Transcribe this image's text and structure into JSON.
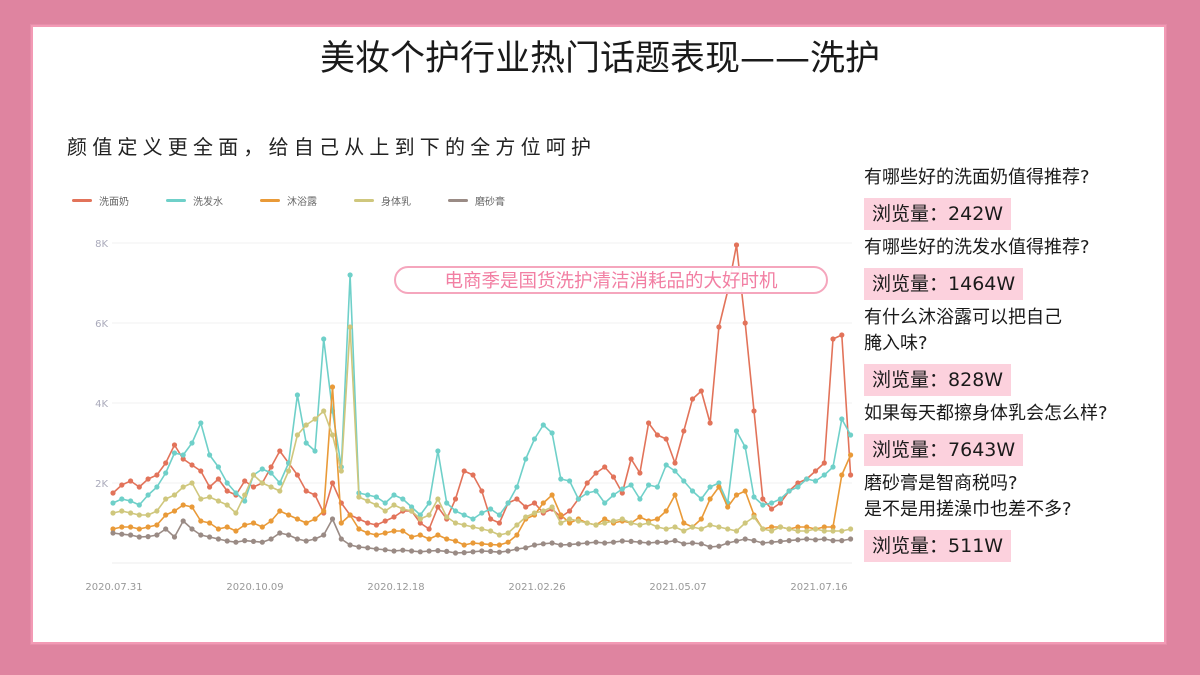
{
  "page": {
    "title": "美妆个护行业热门话题表现——洗护",
    "subtitle": "颜值定义更全面，给自己从上到下的全方位呵护",
    "annotation": "电商季是国货洗护清洁消耗品的大好时机"
  },
  "colors": {
    "background": "#df84a0",
    "card": "#ffffff",
    "highlight": "#fcd1dd",
    "annotation_text": "#f27fa3",
    "annotation_border": "#f5a6bd"
  },
  "topics": [
    {
      "question": "有哪些好的洗面奶值得推荐?",
      "views_label": "浏览量：",
      "views": "242W"
    },
    {
      "question": "有哪些好的洗发水值得推荐?",
      "views_label": "浏览量：",
      "views": "1464W"
    },
    {
      "question": "有什么沐浴露可以把自己\n腌入味?",
      "question_lines": [
        "有什么沐浴露可以把自己",
        "腌入味?"
      ],
      "views_label": "浏览量：",
      "views": "828W"
    },
    {
      "question": "如果每天都擦身体乳会怎么样?",
      "views_label": "浏览量：",
      "views": "7643W"
    },
    {
      "question": "磨砂膏是智商税吗?\n是不是用搓澡巾也差不多?",
      "question_lines": [
        "磨砂膏是智商税吗?",
        "是不是用搓澡巾也差不多?"
      ],
      "views_label": "浏览量：",
      "views": "511W"
    }
  ],
  "chart_data": {
    "type": "line",
    "title": "",
    "xlabel": "",
    "ylabel": "",
    "ylim": [
      0,
      8000
    ],
    "yticks": [
      "2K",
      "4K",
      "6K",
      "8K"
    ],
    "ytick_values": [
      2000,
      4000,
      6000,
      8000
    ],
    "grid": true,
    "legend_position": "top-left",
    "x_tick_labels": [
      "2020.07.31",
      "2020.10.09",
      "2020.12.18",
      "2021.02.26",
      "2021.05.07",
      "2021.07.16"
    ],
    "x_step_days": 5,
    "x_start": "2020.07.31",
    "series": [
      {
        "name": "洗面奶",
        "color": "#e2735a",
        "values": [
          1750,
          1950,
          2050,
          1900,
          2100,
          2200,
          2500,
          2950,
          2600,
          2450,
          2300,
          1900,
          2100,
          1800,
          1700,
          2050,
          1900,
          2000,
          2400,
          2800,
          2500,
          2200,
          1800,
          1700,
          1250,
          2000,
          1500,
          1200,
          1100,
          1000,
          950,
          1050,
          1150,
          1300,
          1300,
          1000,
          850,
          1400,
          1100,
          1600,
          2300,
          2200,
          1800,
          1100,
          1000,
          1500,
          1600,
          1400,
          1500,
          1250,
          1350,
          1150,
          1300,
          1600,
          2000,
          2250,
          2400,
          2150,
          1750,
          2600,
          2250,
          3500,
          3200,
          3100,
          2500,
          3300,
          4100,
          4300,
          3500,
          5900,
          6800,
          7950,
          6000,
          3800,
          1600,
          1350,
          1500,
          1800,
          2000,
          2100,
          2300,
          2500,
          5600,
          5700,
          2200
        ]
      },
      {
        "name": "洗发水",
        "color": "#6fd0c9",
        "values": [
          1500,
          1600,
          1550,
          1450,
          1700,
          1900,
          2250,
          2750,
          2700,
          3000,
          3500,
          2700,
          2400,
          2000,
          1750,
          1550,
          2200,
          2350,
          2250,
          2000,
          2500,
          4200,
          3000,
          2800,
          5600,
          3800,
          2400,
          7200,
          1750,
          1700,
          1650,
          1500,
          1700,
          1600,
          1400,
          1200,
          1500,
          2800,
          1500,
          1300,
          1200,
          1100,
          1250,
          1350,
          1200,
          1500,
          1900,
          2600,
          3100,
          3450,
          3250,
          2100,
          2050,
          1600,
          1750,
          1800,
          1500,
          1700,
          1850,
          1950,
          1600,
          1950,
          1900,
          2450,
          2300,
          2050,
          1800,
          1600,
          1900,
          2000,
          1500,
          3300,
          2900,
          1650,
          1450,
          1500,
          1600,
          1800,
          1900,
          2100,
          2050,
          2200,
          2400,
          3600,
          3200
        ]
      },
      {
        "name": "沐浴露",
        "color": "#e99a38",
        "values": [
          850,
          900,
          900,
          850,
          900,
          950,
          1200,
          1300,
          1450,
          1400,
          1050,
          1000,
          850,
          900,
          800,
          950,
          1000,
          900,
          1050,
          1300,
          1200,
          1100,
          1000,
          1100,
          1300,
          4400,
          1000,
          1200,
          850,
          750,
          700,
          750,
          800,
          800,
          650,
          700,
          600,
          700,
          600,
          550,
          450,
          500,
          480,
          460,
          450,
          520,
          700,
          1100,
          1200,
          1500,
          1700,
          1200,
          1000,
          1100,
          1000,
          950,
          1100,
          1000,
          1050,
          1000,
          1150,
          1050,
          1100,
          1300,
          1700,
          1000,
          900,
          1100,
          1600,
          1900,
          1400,
          1700,
          1800,
          1200,
          850,
          900,
          900,
          850,
          900,
          900,
          850,
          900,
          900,
          2200,
          2700
        ]
      },
      {
        "name": "身体乳",
        "color": "#cfc77d",
        "values": [
          1250,
          1300,
          1250,
          1200,
          1200,
          1300,
          1600,
          1700,
          1900,
          2000,
          1600,
          1650,
          1550,
          1450,
          1250,
          1700,
          2200,
          2000,
          1900,
          1800,
          2300,
          3200,
          3450,
          3600,
          3800,
          3200,
          2300,
          5900,
          1650,
          1550,
          1450,
          1300,
          1450,
          1350,
          1300,
          1100,
          1200,
          1600,
          1150,
          1000,
          950,
          900,
          850,
          800,
          700,
          750,
          950,
          1150,
          1250,
          1300,
          1400,
          1000,
          1100,
          1050,
          1000,
          950,
          1000,
          1050,
          1100,
          1000,
          950,
          1000,
          900,
          850,
          900,
          800,
          900,
          850,
          950,
          900,
          850,
          800,
          1000,
          1150,
          850,
          800,
          900,
          850,
          800,
          800,
          850,
          800,
          800,
          800,
          850
        ]
      },
      {
        "name": "磨砂膏",
        "color": "#9a8b85",
        "values": [
          750,
          720,
          700,
          650,
          660,
          700,
          850,
          650,
          1050,
          850,
          700,
          650,
          600,
          550,
          520,
          560,
          540,
          520,
          600,
          750,
          700,
          600,
          550,
          600,
          700,
          1100,
          600,
          450,
          400,
          380,
          350,
          330,
          300,
          320,
          300,
          280,
          300,
          310,
          290,
          250,
          260,
          280,
          300,
          290,
          270,
          300,
          350,
          380,
          450,
          480,
          500,
          450,
          460,
          480,
          500,
          520,
          500,
          520,
          550,
          540,
          520,
          500,
          520,
          520,
          560,
          480,
          500,
          480,
          400,
          420,
          500,
          550,
          600,
          560,
          500,
          520,
          540,
          560,
          580,
          600,
          580,
          600,
          560,
          560,
          600
        ]
      }
    ]
  }
}
